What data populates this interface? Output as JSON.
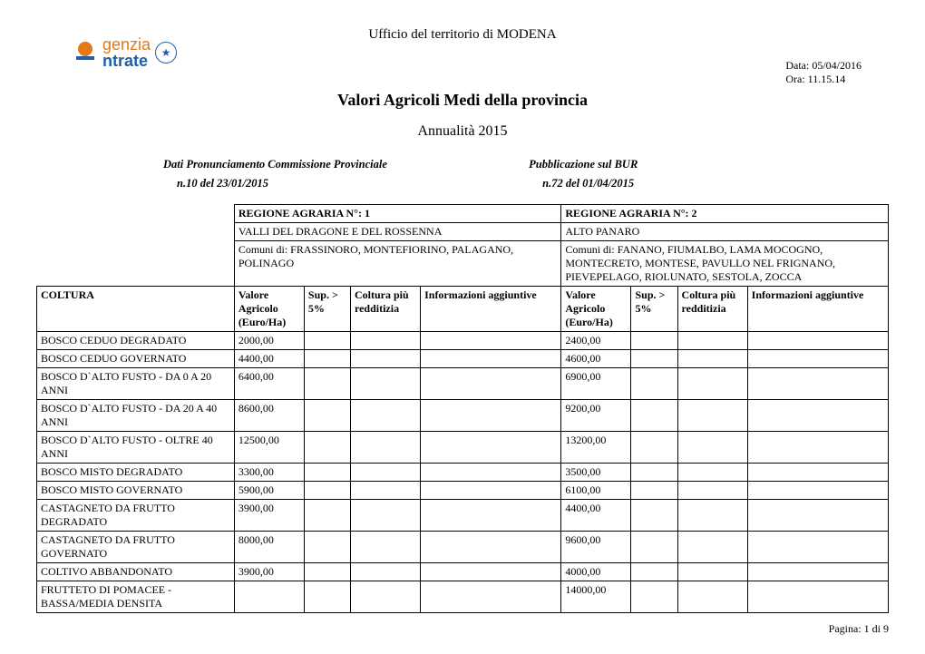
{
  "header": {
    "office": "Ufficio del territorio di  MODENA",
    "logo_g": "genzia",
    "logo_e": "ntrate",
    "date_label": "Data: 05/04/2016",
    "time_label": "Ora: 11.15.14",
    "title": "Valori Agricoli Medi della provincia",
    "year": "Annualità  2015"
  },
  "meta": {
    "left_title": "Dati Pronunciamento Commissione Provinciale",
    "right_title": "Pubblicazione sul BUR",
    "left_val": "n.10 del  23/01/2015",
    "right_val": "n.72  del 01/04/2015"
  },
  "regions": {
    "r1": {
      "num_label": "REGIONE AGRARIA N°:  1",
      "name": "VALLI DEL DRAGONE E DEL ROSSENNA",
      "comuni": "Comuni di: FRASSINORO, MONTEFIORINO, PALAGANO, POLINAGO"
    },
    "r2": {
      "num_label": "REGIONE AGRARIA N°: 2",
      "name": "ALTO PANARO",
      "comuni": "Comuni di: FANANO, FIUMALBO, LAMA MOCOGNO, MONTECRETO, MONTESE, PAVULLO NEL FRIGNANO, PIEVEPELAGO, RIOLUNATO, SESTOLA, ZOCCA"
    }
  },
  "cols": {
    "coltura": "COLTURA",
    "valore": "Valore Agricolo (Euro/Ha)",
    "sup": "Sup. > 5%",
    "redd": "Coltura più redditizia",
    "info": "Informazioni aggiuntive"
  },
  "rows": [
    {
      "c": "BOSCO CEDUO DEGRADATO",
      "v1": "2000,00",
      "v2": "2400,00"
    },
    {
      "c": "BOSCO CEDUO GOVERNATO",
      "v1": "4400,00",
      "v2": "4600,00"
    },
    {
      "c": "BOSCO D`ALTO FUSTO - DA 0 A 20 ANNI",
      "v1": "6400,00",
      "v2": "6900,00"
    },
    {
      "c": "BOSCO D`ALTO FUSTO - DA 20 A 40 ANNI",
      "v1": "8600,00",
      "v2": "9200,00"
    },
    {
      "c": "BOSCO D`ALTO FUSTO - OLTRE 40 ANNI",
      "v1": "12500,00",
      "v2": "13200,00"
    },
    {
      "c": "BOSCO MISTO DEGRADATO",
      "v1": "3300,00",
      "v2": "3500,00"
    },
    {
      "c": "BOSCO MISTO GOVERNATO",
      "v1": "5900,00",
      "v2": "6100,00"
    },
    {
      "c": "CASTAGNETO DA FRUTTO DEGRADATO",
      "v1": "3900,00",
      "v2": "4400,00"
    },
    {
      "c": "CASTAGNETO DA FRUTTO GOVERNATO",
      "v1": "8000,00",
      "v2": "9600,00"
    },
    {
      "c": "COLTIVO ABBANDONATO",
      "v1": "3900,00",
      "v2": "4000,00"
    },
    {
      "c": "FRUTTETO DI POMACEE - BASSA/MEDIA DENSITA",
      "v1": "",
      "v2": "14000,00"
    }
  ],
  "footer": {
    "page": "Pagina: 1 di 9"
  }
}
